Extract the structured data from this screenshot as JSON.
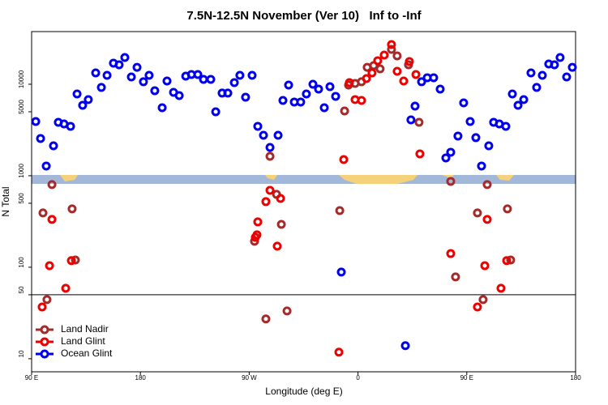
{
  "chart_data": {
    "type": "scatter",
    "title": "7.5N-12.5N November (Ver 10)   Inf to -Inf",
    "x_label": "Longitude (deg E)",
    "y_label": "N Total",
    "log_y": true,
    "legend": "lower left",
    "hline": 50,
    "xlim": [
      90,
      540
    ],
    "ylim": [
      7.2,
      37600
    ],
    "xticks": [
      {
        "value": 90,
        "label": "90 E"
      },
      180,
      {
        "value": 270,
        "label": "90 W"
      },
      {
        "value": 360,
        "label": "0"
      },
      {
        "value": 450,
        "label": "90 E"
      },
      {
        "value": 540,
        "label": "180"
      }
    ],
    "yticks": [
      10,
      50,
      100,
      500,
      1000,
      5000,
      10000
    ],
    "series": [
      {
        "name": "Land Nadir",
        "color": "#a52a2a",
        "x": [
          99.4,
          102.7,
          106.8,
          123.5,
          126.2,
          274.4,
          283.8,
          287.2,
          292.6,
          296.6,
          301.3,
          344.9,
          348.9,
          352.2,
          357.6,
          362.9,
          367.6,
          373.0,
          378.3,
          387.7,
          392.4,
          401.8,
          410.5,
          436.7,
          440.7,
          458.8,
          463.5,
          466.9,
          483.6,
          486.3
        ],
        "values": [
          392,
          44.3,
          800,
          434,
          120,
          192,
          27.2,
          1630,
          626,
          294,
          33.3,
          416,
          5105,
          9800,
          10210,
          10640,
          15300,
          15990,
          14720,
          24030,
          20400,
          16300,
          3837,
          867,
          78.3,
          392,
          44.3,
          800,
          434,
          120
        ]
      },
      {
        "name": "Land Glint",
        "color": "#ee0000",
        "x": [
          98.7,
          104.8,
          106.8,
          118.2,
          122.9,
          275.1,
          276.4,
          277.1,
          283.8,
          287.2,
          293.2,
          295.9,
          344.2,
          348.2,
          352.9,
          357.6,
          362.9,
          367.0,
          371.6,
          376.3,
          381.7,
          387.7,
          392.4,
          397.8,
          402.5,
          407.9,
          411.2,
          436.7,
          458.8,
          464.9,
          466.9,
          478.3,
          483.0
        ],
        "values": [
          36.8,
          104,
          333,
          58.9,
          118,
          212,
          226,
          313,
          521,
          693,
          170,
          565,
          11.8,
          1503,
          10420,
          6792,
          6650,
          11530,
          13300,
          18070,
          20830,
          27160,
          13860,
          10850,
          17700,
          12770,
          1734,
          141,
          36.8,
          104,
          333,
          58.9,
          118
        ]
      },
      {
        "name": "Ocean Glint",
        "color": "#0000ee",
        "x": [
          93.4,
          97.4,
          102.1,
          108.1,
          112.1,
          116.8,
          122.2,
          127.6,
          132.2,
          136.9,
          143.0,
          147.7,
          152.4,
          157.7,
          162.4,
          167.1,
          172.5,
          177.2,
          182.5,
          187.2,
          191.9,
          198.0,
          202.0,
          207.4,
          212.1,
          217.5,
          222.2,
          227.5,
          232.2,
          238.2,
          242.3,
          247.6,
          252.3,
          257.7,
          262.3,
          267.0,
          272.4,
          277.1,
          281.8,
          287.2,
          293.9,
          297.9,
          302.6,
          307.3,
          312.6,
          317.3,
          322.7,
          327.4,
          332.1,
          336.8,
          341.5,
          346.2,
          399.2,
          403.8,
          407.2,
          412.6,
          417.3,
          422.6,
          428.0,
          432.7,
          436.7,
          442.7,
          447.4,
          452.8,
          457.5,
          462.2,
          468.2,
          472.2,
          476.9,
          482.3,
          487.7,
          492.4,
          497.1,
          503.1,
          507.8,
          512.5,
          517.8,
          522.5,
          527.2,
          532.6,
          537.3
        ],
        "values": [
          3917,
          2553,
          1277,
          2125,
          3837,
          3684,
          3467,
          7834,
          5888,
          6792,
          13300,
          9226,
          12500,
          17000,
          16300,
          19600,
          12000,
          15300,
          10640,
          12500,
          8490,
          5540,
          10850,
          8160,
          7520,
          12250,
          12770,
          12770,
          11300,
          11300,
          5000,
          8000,
          8000,
          10420,
          12500,
          7220,
          12500,
          3467,
          2770,
          2040,
          2770,
          6650,
          9800,
          6390,
          6390,
          7830,
          10000,
          8850,
          5540,
          9400,
          7370,
          88.5,
          13.9,
          4080,
          5770,
          10640,
          11780,
          11780,
          8850,
          1566,
          1806,
          2715,
          6260,
          3917,
          2607,
          1277,
          2125,
          3837,
          3684,
          3467,
          7834,
          5888,
          6792,
          13300,
          9226,
          12500,
          16630,
          16300,
          19600,
          12000,
          15300
        ]
      }
    ]
  }
}
